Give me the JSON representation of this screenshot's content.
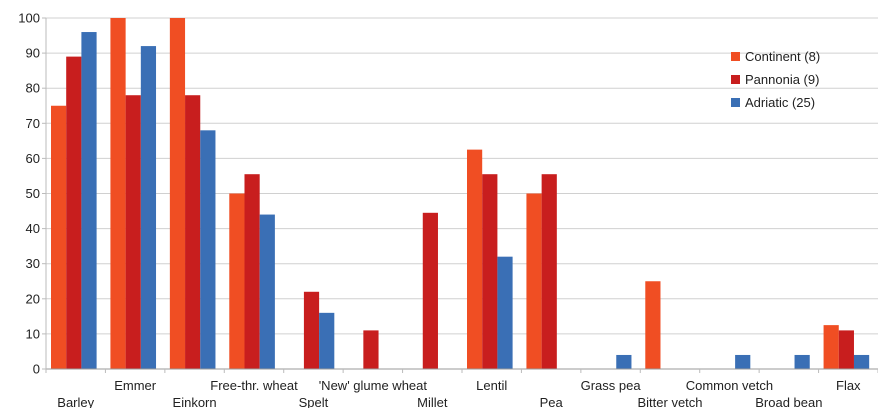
{
  "chart_data": {
    "type": "bar",
    "title": "",
    "xlabel": "",
    "ylabel": "",
    "ylim": [
      0,
      100
    ],
    "yticks": [
      0,
      10,
      20,
      30,
      40,
      50,
      60,
      70,
      80,
      90,
      100
    ],
    "grid": true,
    "legend": "right",
    "categories": [
      "Barley",
      "Emmer",
      "Einkorn",
      "Free-thr. wheat",
      "Spelt",
      "'New' glume wheat",
      "Millet",
      "Lentil",
      "Pea",
      "Grass pea",
      "Bitter vetch",
      "Common vetch",
      "Broad bean",
      "Flax"
    ],
    "series": [
      {
        "name": "Continent (8)",
        "color": "#f04e23",
        "values": [
          75,
          100,
          100,
          50,
          0,
          0,
          0,
          62.5,
          50,
          0,
          25,
          0,
          0,
          12.5
        ]
      },
      {
        "name": "Pannonia (9)",
        "color": "#c81e1e",
        "values": [
          89,
          78,
          78,
          55.5,
          22,
          11,
          44.5,
          55.5,
          55.5,
          0,
          0,
          0,
          0,
          11
        ]
      },
      {
        "name": "Adriatic (25)",
        "color": "#3a6fb5",
        "values": [
          96,
          92,
          68,
          44,
          16,
          0,
          0,
          32,
          0,
          4,
          0,
          4,
          4,
          4
        ]
      }
    ]
  }
}
